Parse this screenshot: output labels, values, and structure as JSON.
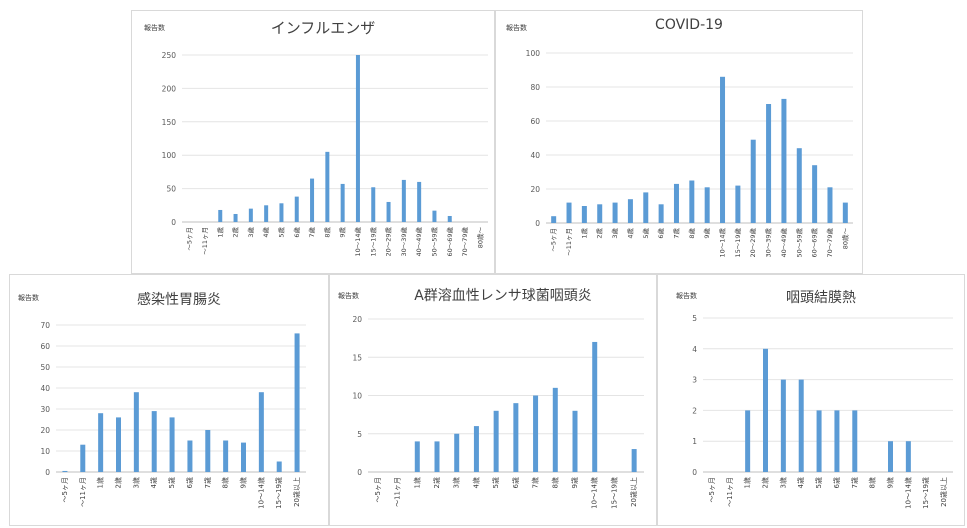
{
  "chart_data": [
    {
      "type": "bar",
      "title": "インフルエンザ",
      "ylabel": "報告数",
      "ylim": [
        0,
        250
      ],
      "yticks": [
        0,
        50,
        100,
        150,
        200,
        250
      ],
      "categories": [
        "～5ヶ月",
        "～11ヶ月",
        "1歳",
        "2歳",
        "3歳",
        "4歳",
        "5歳",
        "6歳",
        "7歳",
        "8歳",
        "9歳",
        "10～14歳",
        "15～19歳",
        "20～29歳",
        "30～39歳",
        "40～49歳",
        "50～59歳",
        "60～69歳",
        "70～79歳",
        "80歳～"
      ],
      "values": [
        0,
        0,
        18,
        12,
        20,
        25,
        28,
        38,
        65,
        105,
        57,
        250,
        52,
        30,
        63,
        60,
        17,
        9,
        0,
        0
      ],
      "color": "#5b9bd5",
      "grid": true
    },
    {
      "type": "bar",
      "title": "COVID-19",
      "ylabel": "報告数",
      "ylim": [
        0,
        100
      ],
      "yticks": [
        0,
        20,
        40,
        60,
        80,
        100
      ],
      "categories": [
        "～5ヶ月",
        "～11ヶ月",
        "1歳",
        "2歳",
        "3歳",
        "4歳",
        "5歳",
        "6歳",
        "7歳",
        "8歳",
        "9歳",
        "10～14歳",
        "15～19歳",
        "20～29歳",
        "30～39歳",
        "40～49歳",
        "50～59歳",
        "60～69歳",
        "70～79歳",
        "80歳～"
      ],
      "values": [
        4,
        12,
        10,
        11,
        12,
        14,
        18,
        11,
        23,
        25,
        21,
        86,
        22,
        49,
        70,
        73,
        44,
        34,
        21,
        12
      ],
      "color": "#5b9bd5",
      "grid": true
    },
    {
      "type": "bar",
      "title": "感染性胃腸炎",
      "ylabel": "報告数",
      "ylim": [
        0,
        70
      ],
      "yticks": [
        0,
        10,
        20,
        30,
        40,
        50,
        60,
        70
      ],
      "categories": [
        "～5ヶ月",
        "～11ヶ月",
        "1歳",
        "2歳",
        "3歳",
        "4歳",
        "5歳",
        "6歳",
        "7歳",
        "8歳",
        "9歳",
        "10～14歳",
        "15～19歳",
        "20歳以上"
      ],
      "values": [
        0.5,
        13,
        28,
        26,
        38,
        29,
        26,
        15,
        20,
        15,
        14,
        38,
        5,
        66
      ],
      "color": "#5b9bd5",
      "grid": true
    },
    {
      "type": "bar",
      "title": "A群溶血性レンサ球菌咽頭炎",
      "ylabel": "報告数",
      "ylim": [
        0,
        20
      ],
      "yticks": [
        0,
        5,
        10,
        15,
        20
      ],
      "categories": [
        "～5ヶ月",
        "～11ヶ月",
        "1歳",
        "2歳",
        "3歳",
        "4歳",
        "5歳",
        "6歳",
        "7歳",
        "8歳",
        "9歳",
        "10～14歳",
        "15～19歳",
        "20歳以上"
      ],
      "values": [
        0,
        0,
        4,
        4,
        5,
        6,
        8,
        9,
        10,
        11,
        8,
        17,
        0,
        3
      ],
      "color": "#5b9bd5",
      "grid": true
    },
    {
      "type": "bar",
      "title": "咽頭結膜熱",
      "ylabel": "報告数",
      "ylim": [
        0,
        5
      ],
      "yticks": [
        0,
        1,
        2,
        3,
        4,
        5
      ],
      "categories": [
        "～5ヶ月",
        "～11ヶ月",
        "1歳",
        "2歳",
        "3歳",
        "4歳",
        "5歳",
        "6歳",
        "7歳",
        "8歳",
        "9歳",
        "10～14歳",
        "15～19歳",
        "20歳以上"
      ],
      "values": [
        0,
        0,
        2,
        4,
        3,
        3,
        2,
        2,
        2,
        0,
        1,
        1,
        0,
        0
      ],
      "color": "#5b9bd5",
      "grid": true
    }
  ]
}
